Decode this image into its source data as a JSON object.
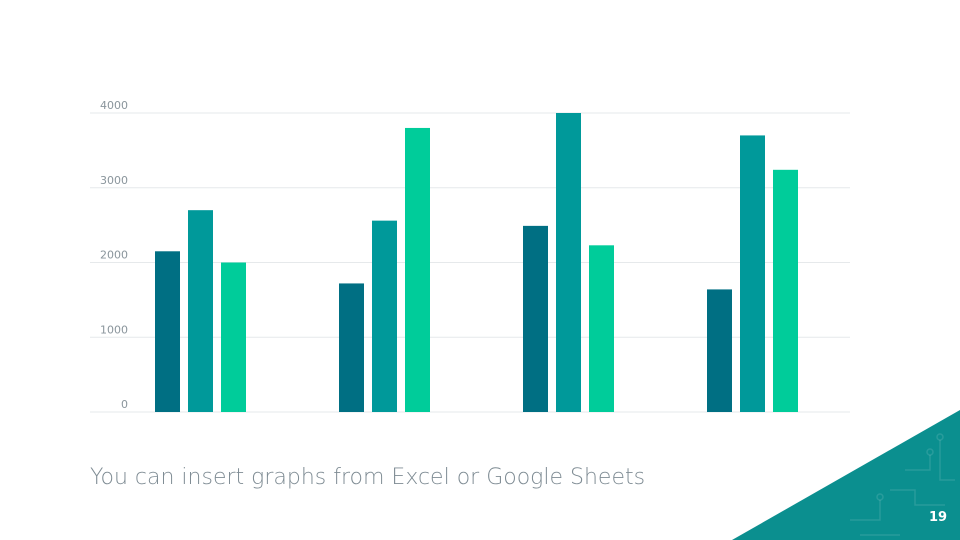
{
  "slide": {
    "caption": "You can insert graphs from Excel or Google Sheets",
    "page_number": "19",
    "corner_color": "#0b8f8f"
  },
  "chart_data": {
    "type": "bar",
    "categories": [
      "",
      "",
      "",
      ""
    ],
    "series": [
      {
        "values": [
          2150,
          1720,
          2490,
          1640
        ],
        "color": "#006f83"
      },
      {
        "values": [
          2700,
          2560,
          4000,
          3700
        ],
        "color": "#00999a"
      },
      {
        "values": [
          2000,
          3800,
          2230,
          3240
        ],
        "color": "#00cc9a"
      }
    ],
    "yticks": [
      0,
      1000,
      2000,
      3000,
      4000
    ],
    "ylim": [
      0,
      4000
    ],
    "grid": true,
    "legend": "none",
    "title": "",
    "xlabel": "",
    "ylabel": ""
  }
}
